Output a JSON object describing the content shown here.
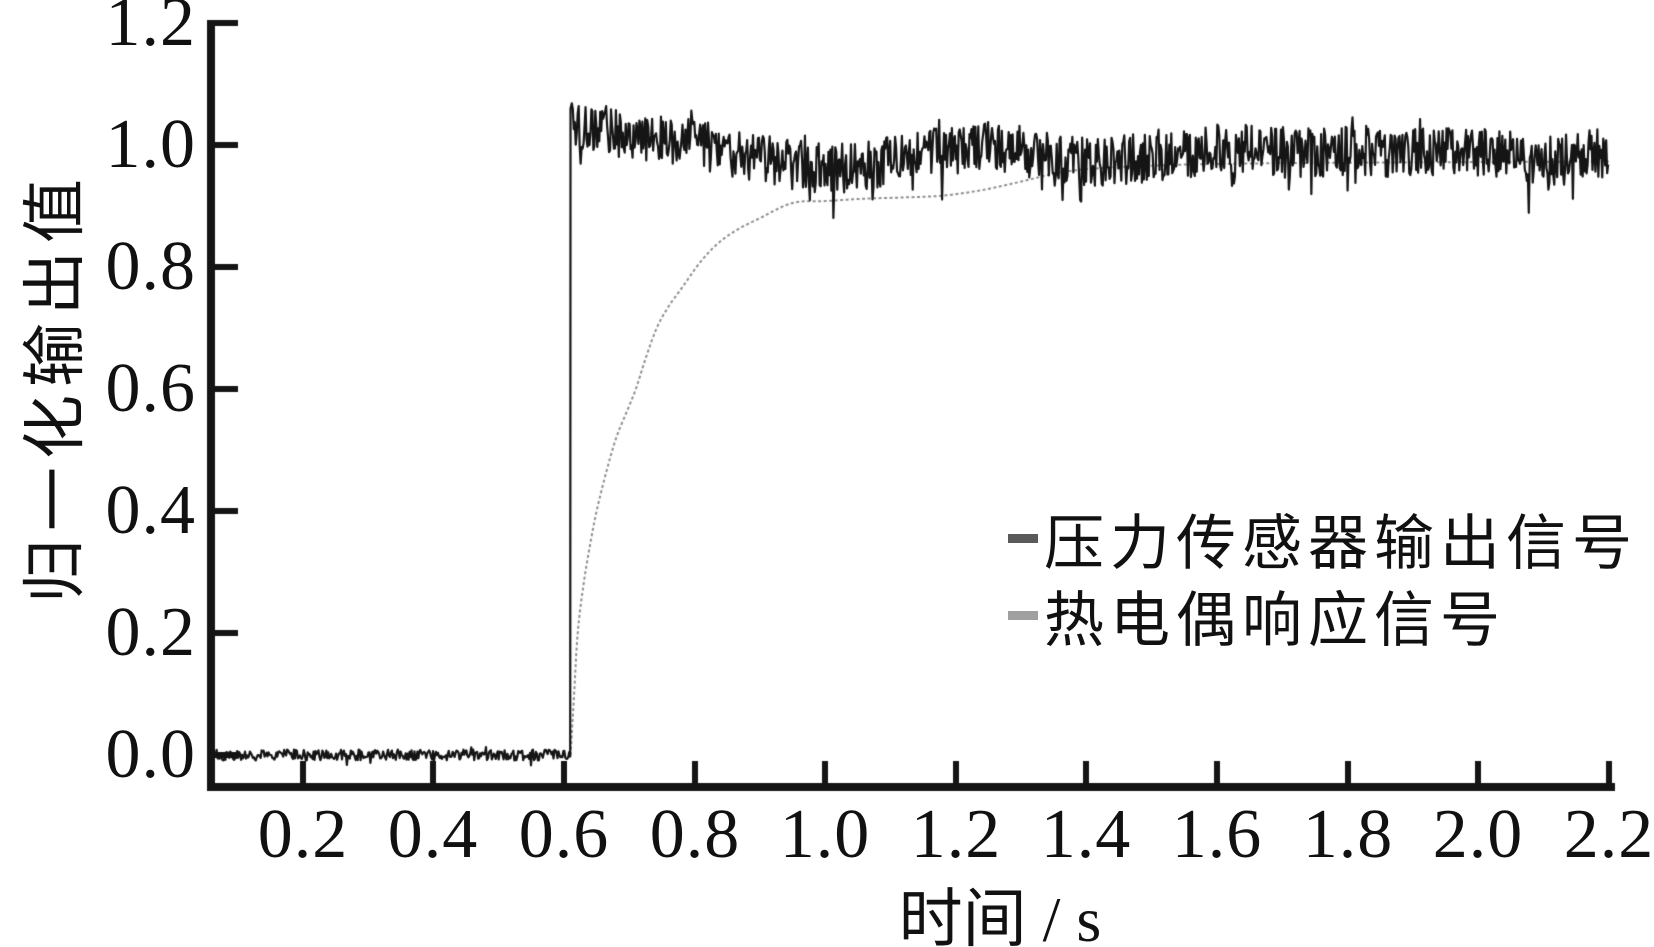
{
  "figure": {
    "background": "#ffffff",
    "axis_color": "#141414"
  },
  "chart_data": {
    "type": "line",
    "title": "",
    "xlabel": "时间 / s",
    "ylabel": "归一化输出值",
    "xlim": [
      0.062,
      2.2
    ],
    "ylim": [
      -0.053,
      1.205
    ],
    "grid": false,
    "legend_position": "center-right",
    "x_ticks": [
      "0.2",
      "0.4",
      "0.6",
      "0.8",
      "1.0",
      "1.2",
      "1.4",
      "1.6",
      "1.8",
      "2.0",
      "2.2"
    ],
    "x_tick_values": [
      0.2,
      0.4,
      0.6,
      0.8,
      1.0,
      1.2,
      1.4,
      1.6,
      1.8,
      2.0,
      2.2
    ],
    "y_ticks": [
      "0.0",
      "0.2",
      "0.4",
      "0.6",
      "0.8",
      "1.0",
      "1.2"
    ],
    "y_tick_values": [
      0.0,
      0.2,
      0.4,
      0.6,
      0.8,
      1.0,
      1.2
    ],
    "series": [
      {
        "name": "压力传感器输出信号",
        "color": "#151515",
        "legend_marker_color": "#5a5a5a",
        "style": "noisy-step",
        "step_time": 0.61,
        "peak_value": 1.06,
        "baseline_mean": 0.0,
        "baseline_noise_half_amp": 0.009,
        "noise_half_amp": 0.042,
        "spike_prob": 0.05,
        "spike_gain": 1.55,
        "sample_dt": 0.0015,
        "envelope": [
          [
            0.612,
            1.035
          ],
          [
            0.64,
            1.025
          ],
          [
            0.68,
            1.02
          ],
          [
            0.72,
            1.015
          ],
          [
            0.76,
            1.01
          ],
          [
            0.8,
            1.0
          ],
          [
            0.85,
            0.99
          ],
          [
            0.9,
            0.978
          ],
          [
            0.95,
            0.968
          ],
          [
            1.0,
            0.962
          ],
          [
            1.05,
            0.963
          ],
          [
            1.1,
            0.972
          ],
          [
            1.15,
            0.982
          ],
          [
            1.2,
            0.992
          ],
          [
            1.25,
            1.005
          ],
          [
            1.3,
            0.99
          ],
          [
            1.35,
            0.975
          ],
          [
            1.4,
            0.972
          ],
          [
            1.45,
            0.976
          ],
          [
            1.5,
            0.982
          ],
          [
            1.55,
            0.988
          ],
          [
            1.6,
            0.995
          ],
          [
            1.65,
            0.992
          ],
          [
            1.7,
            0.988
          ],
          [
            1.75,
            0.986
          ],
          [
            1.8,
            0.99
          ],
          [
            1.85,
            0.99
          ],
          [
            1.9,
            0.986
          ],
          [
            1.95,
            0.986
          ],
          [
            2.0,
            0.99
          ],
          [
            2.05,
            0.985
          ],
          [
            2.1,
            0.962
          ],
          [
            2.13,
            0.975
          ],
          [
            2.16,
            0.985
          ],
          [
            2.2,
            0.985
          ]
        ]
      },
      {
        "name": "热电偶响应信号",
        "color": "#8f8f8f",
        "legend_marker_color": "#a0a0a0",
        "style": "smooth",
        "points": [
          [
            0.61,
            0.0
          ],
          [
            0.615,
            0.09
          ],
          [
            0.621,
            0.2
          ],
          [
            0.63,
            0.28
          ],
          [
            0.64,
            0.345
          ],
          [
            0.65,
            0.4
          ],
          [
            0.665,
            0.465
          ],
          [
            0.68,
            0.52
          ],
          [
            0.695,
            0.56
          ],
          [
            0.71,
            0.6
          ],
          [
            0.725,
            0.65
          ],
          [
            0.742,
            0.7
          ],
          [
            0.76,
            0.735
          ],
          [
            0.78,
            0.765
          ],
          [
            0.808,
            0.807
          ],
          [
            0.835,
            0.838
          ],
          [
            0.865,
            0.861
          ],
          [
            0.9,
            0.88
          ],
          [
            0.95,
            0.905
          ],
          [
            1.0,
            0.908
          ],
          [
            1.06,
            0.912
          ],
          [
            1.12,
            0.914
          ],
          [
            1.18,
            0.917
          ],
          [
            1.24,
            0.926
          ],
          [
            1.3,
            0.94
          ],
          [
            1.36,
            0.955
          ],
          [
            1.42,
            0.962
          ],
          [
            1.5,
            0.966
          ],
          [
            1.6,
            0.969
          ],
          [
            1.8,
            0.971
          ],
          [
            2.0,
            0.972
          ],
          [
            2.2,
            0.973
          ]
        ]
      }
    ]
  }
}
